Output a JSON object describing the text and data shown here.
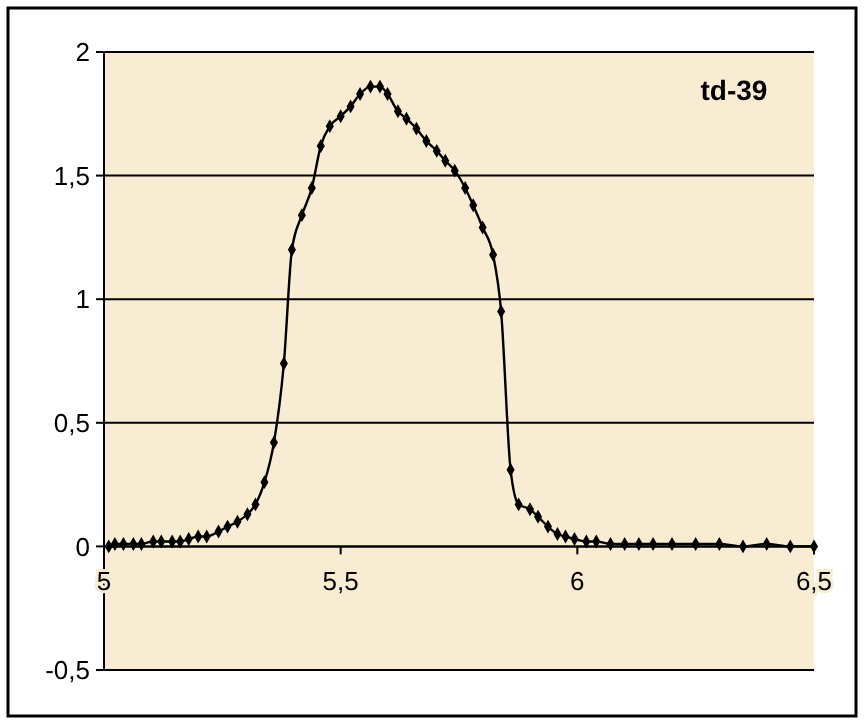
{
  "chart_data": {
    "type": "line",
    "annotations": [
      "td-39"
    ],
    "x": [
      5.01,
      5.023,
      5.041,
      5.062,
      5.079,
      5.104,
      5.121,
      5.144,
      5.161,
      5.179,
      5.199,
      5.217,
      5.242,
      5.261,
      5.282,
      5.303,
      5.32,
      5.339,
      5.359,
      5.38,
      5.397,
      5.418,
      5.439,
      5.458,
      5.477,
      5.5,
      5.521,
      5.541,
      5.563,
      5.583,
      5.599,
      5.621,
      5.639,
      5.66,
      5.681,
      5.703,
      5.721,
      5.741,
      5.763,
      5.78,
      5.8,
      5.822,
      5.839,
      5.859,
      5.876,
      5.9,
      5.917,
      5.938,
      5.958,
      5.975,
      5.994,
      6.019,
      6.04,
      6.07,
      6.1,
      6.13,
      6.16,
      6.2,
      6.25,
      6.3,
      6.35,
      6.4,
      6.45,
      6.5
    ],
    "series": [
      {
        "color": "#000000",
        "values": [
          0,
          0.01,
          0.01,
          0.01,
          0.01,
          0.02,
          0.02,
          0.02,
          0.02,
          0.03,
          0.04,
          0.04,
          0.06,
          0.08,
          0.1,
          0.13,
          0.17,
          0.26,
          0.42,
          0.74,
          1.2,
          1.34,
          1.45,
          1.62,
          1.7,
          1.74,
          1.78,
          1.83,
          1.86,
          1.86,
          1.83,
          1.76,
          1.73,
          1.69,
          1.64,
          1.6,
          1.56,
          1.52,
          1.45,
          1.38,
          1.29,
          1.18,
          0.95,
          0.31,
          0.17,
          0.15,
          0.12,
          0.08,
          0.05,
          0.04,
          0.03,
          0.02,
          0.02,
          0.01,
          0.01,
          0.01,
          0.01,
          0.01,
          0.01,
          0.01,
          0,
          0.01,
          0,
          0
        ]
      }
    ],
    "xlim": [
      5,
      6.5
    ],
    "xticks": [
      5,
      {
        "value": 5.5,
        "label": "5,5"
      },
      6,
      {
        "value": 6.5,
        "label": "6,5"
      }
    ],
    "ylim": [
      -0.5,
      2
    ],
    "yticks": [
      {
        "value": -0.5,
        "label": "-0,5"
      },
      0,
      {
        "value": 0.5,
        "label": "0,5"
      },
      1,
      {
        "value": 1.5,
        "label": "1,5"
      },
      2
    ],
    "grid": "y",
    "marker": "diamond",
    "line_style": "solid"
  }
}
